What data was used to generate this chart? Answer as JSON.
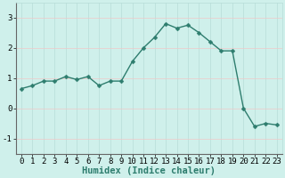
{
  "x": [
    0,
    1,
    2,
    3,
    4,
    5,
    6,
    7,
    8,
    9,
    10,
    11,
    12,
    13,
    14,
    15,
    16,
    17,
    18,
    19,
    20,
    21,
    22,
    23
  ],
  "y": [
    0.65,
    0.75,
    0.9,
    0.9,
    1.05,
    0.95,
    1.05,
    0.75,
    0.9,
    0.9,
    1.55,
    2.0,
    2.35,
    2.8,
    2.65,
    2.75,
    2.5,
    2.2,
    1.9,
    1.9,
    0.0,
    -0.6,
    -0.5,
    -0.55
  ],
  "line_color": "#2e7d6e",
  "marker": "D",
  "marker_size": 2.5,
  "line_width": 1.0,
  "xlabel": "Humidex (Indice chaleur)",
  "xlabel_fontsize": 7.5,
  "ylim": [
    -1.5,
    3.5
  ],
  "xlim": [
    -0.5,
    23.5
  ],
  "yticks": [
    -1,
    0,
    1,
    2,
    3
  ],
  "xticks": [
    0,
    1,
    2,
    3,
    4,
    5,
    6,
    7,
    8,
    9,
    10,
    11,
    12,
    13,
    14,
    15,
    16,
    17,
    18,
    19,
    20,
    21,
    22,
    23
  ],
  "tick_fontsize": 6.5,
  "background_color": "#cff0eb",
  "grid_color": "#b8ddd8",
  "grid_h_color": "#f0c8c8",
  "figure_bg": "#cff0eb"
}
